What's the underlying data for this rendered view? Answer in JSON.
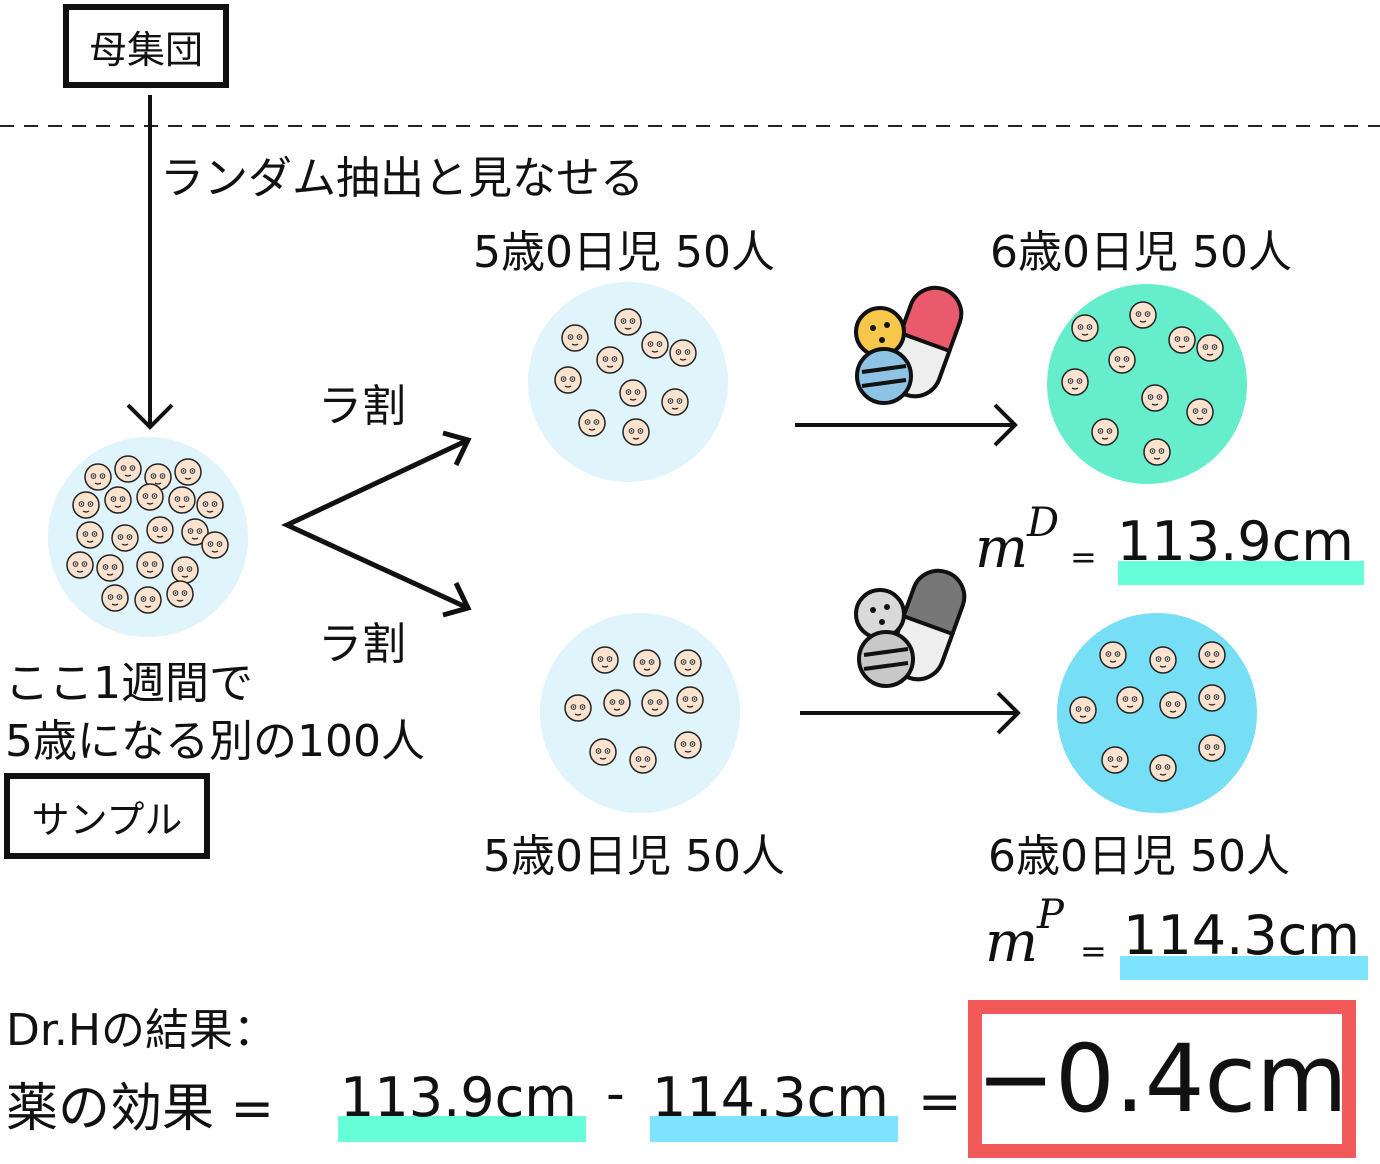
{
  "population_label": "母集団",
  "sample_label": "サンプル",
  "random_sampling_note": "ランダム抽出と見なせる",
  "sample_desc_line1": "ここ1週間で",
  "sample_desc_line2": "5歳になる別の100人",
  "random_assign_top": "ラ割",
  "random_assign_bottom": "ラ割",
  "group_top_before": "5歳0日児 50人",
  "group_top_after": "6歳0日児 50人",
  "group_bottom_before": "5歳0日児 50人",
  "group_bottom_after": "6歳0日児 50人",
  "mean_drug_symbol": "m",
  "mean_drug_sup": "D",
  "mean_drug_eq": "=",
  "mean_drug_value": "113.9cm",
  "mean_placebo_symbol": "m",
  "mean_placebo_sup": "P",
  "mean_placebo_eq": "=",
  "mean_placebo_value": "114.3cm",
  "result_heading": "Dr.Hの結果：",
  "result_label": "薬の効果 =",
  "result_drug_value": "113.9cm",
  "result_minus": "-",
  "result_placebo_value": "114.3cm",
  "result_equals": "=",
  "result_final": "−0.4cm",
  "icons": [
    "pill-drug-icon",
    "pill-placebo-icon",
    "child-face-icon"
  ],
  "colors": {
    "drug_highlight": "#66ffd9",
    "placebo_highlight": "#7ee3ff",
    "result_box": "#f25a5a",
    "circle_light": "#dff5fb",
    "circle_drug": "#66eecc",
    "circle_placebo": "#77dff5"
  }
}
